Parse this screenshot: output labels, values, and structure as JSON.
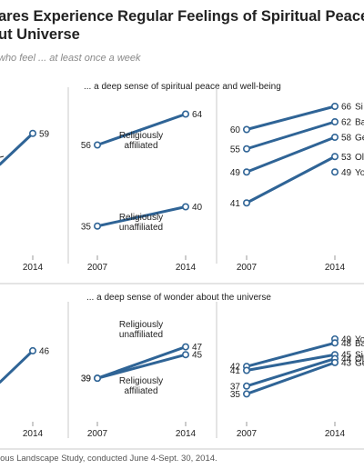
{
  "header": {
    "title_line1": "ares Experience Regular Feelings of Spiritual Peace",
    "title_line2": "ut Universe",
    "subtitle": "who feel ... at least once a week"
  },
  "sections": {
    "peace": "... a deep sense of spiritual peace and well-being",
    "wonder": "... a deep sense of wonder about the universe"
  },
  "footer": "ious Landscape Study, conducted June 4-Sept. 30, 2014.",
  "colors": {
    "line": "#2f6496",
    "point_fill": "#ffffff",
    "divider": "#c8c8c8"
  },
  "chart_data": [
    {
      "type": "line",
      "panel": "peace-total",
      "title": "",
      "x": [
        "2007",
        "2014"
      ],
      "series": [
        {
          "name": "",
          "values": [
            null,
            59
          ]
        }
      ]
    },
    {
      "type": "line",
      "panel": "peace-affiliation",
      "title": "",
      "x": [
        "2007",
        "2014"
      ],
      "series": [
        {
          "name": "Religiously affiliated",
          "values": [
            56,
            64
          ]
        },
        {
          "name": "Religiously unaffiliated",
          "values": [
            35,
            40
          ]
        }
      ]
    },
    {
      "type": "line",
      "panel": "peace-generation",
      "title": "",
      "x": [
        "2007",
        "2014"
      ],
      "series": [
        {
          "name": "Si",
          "values": [
            60,
            66
          ]
        },
        {
          "name": "Ba",
          "values": [
            55,
            62
          ]
        },
        {
          "name": "Ge",
          "values": [
            49,
            58
          ]
        },
        {
          "name": "Ol",
          "values": [
            41,
            53
          ]
        },
        {
          "name": "Yo",
          "values": [
            null,
            49
          ]
        }
      ]
    },
    {
      "type": "line",
      "panel": "wonder-total",
      "title": "",
      "x": [
        "2007",
        "2014"
      ],
      "series": [
        {
          "name": "",
          "values": [
            null,
            46
          ]
        }
      ]
    },
    {
      "type": "line",
      "panel": "wonder-affiliation",
      "title": "",
      "x": [
        "2007",
        "2014"
      ],
      "series": [
        {
          "name": "Religiously unaffiliated",
          "values": [
            39,
            47
          ]
        },
        {
          "name": "Religiously affiliated",
          "values": [
            39,
            45
          ]
        }
      ]
    },
    {
      "type": "line",
      "panel": "wonder-generation",
      "title": "",
      "x": [
        "2007",
        "2014"
      ],
      "series": [
        {
          "name": "Yo",
          "values": [
            null,
            49
          ]
        },
        {
          "name": "Ba",
          "values": [
            42,
            48
          ]
        },
        {
          "name": "Si",
          "values": [
            41,
            45
          ]
        },
        {
          "name": "Ol",
          "values": [
            37,
            44
          ]
        },
        {
          "name": "Ge",
          "values": [
            35,
            43
          ]
        }
      ]
    }
  ]
}
